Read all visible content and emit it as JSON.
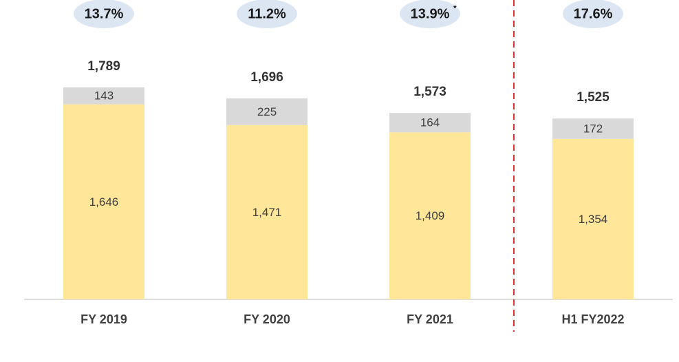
{
  "chart_data": {
    "type": "bar",
    "stacked": true,
    "categories": [
      "FY 2019",
      "FY 2020",
      "FY 2021",
      "H1 FY2022"
    ],
    "series": [
      {
        "color": "#ffe699",
        "values": [
          1646,
          1471,
          1409,
          1354
        ],
        "value_labels": [
          "1,646",
          "1,471",
          "1,409",
          "1,354"
        ]
      },
      {
        "color": "#d9d9d9",
        "values": [
          143,
          225,
          164,
          172
        ],
        "value_labels": [
          "143",
          "225",
          "164",
          "172"
        ]
      }
    ],
    "totals": {
      "values": [
        1789,
        1696,
        1573,
        1525
      ],
      "value_labels": [
        "1,789",
        "1,696",
        "1,573",
        "1,525"
      ]
    },
    "ratios": {
      "values": [
        13.7,
        11.2,
        13.9,
        17.6
      ],
      "value_labels": [
        "13.7%",
        "11.2%",
        "13.9%",
        "17.6%"
      ],
      "notes": [
        null,
        null,
        "*",
        null
      ]
    }
  }
}
